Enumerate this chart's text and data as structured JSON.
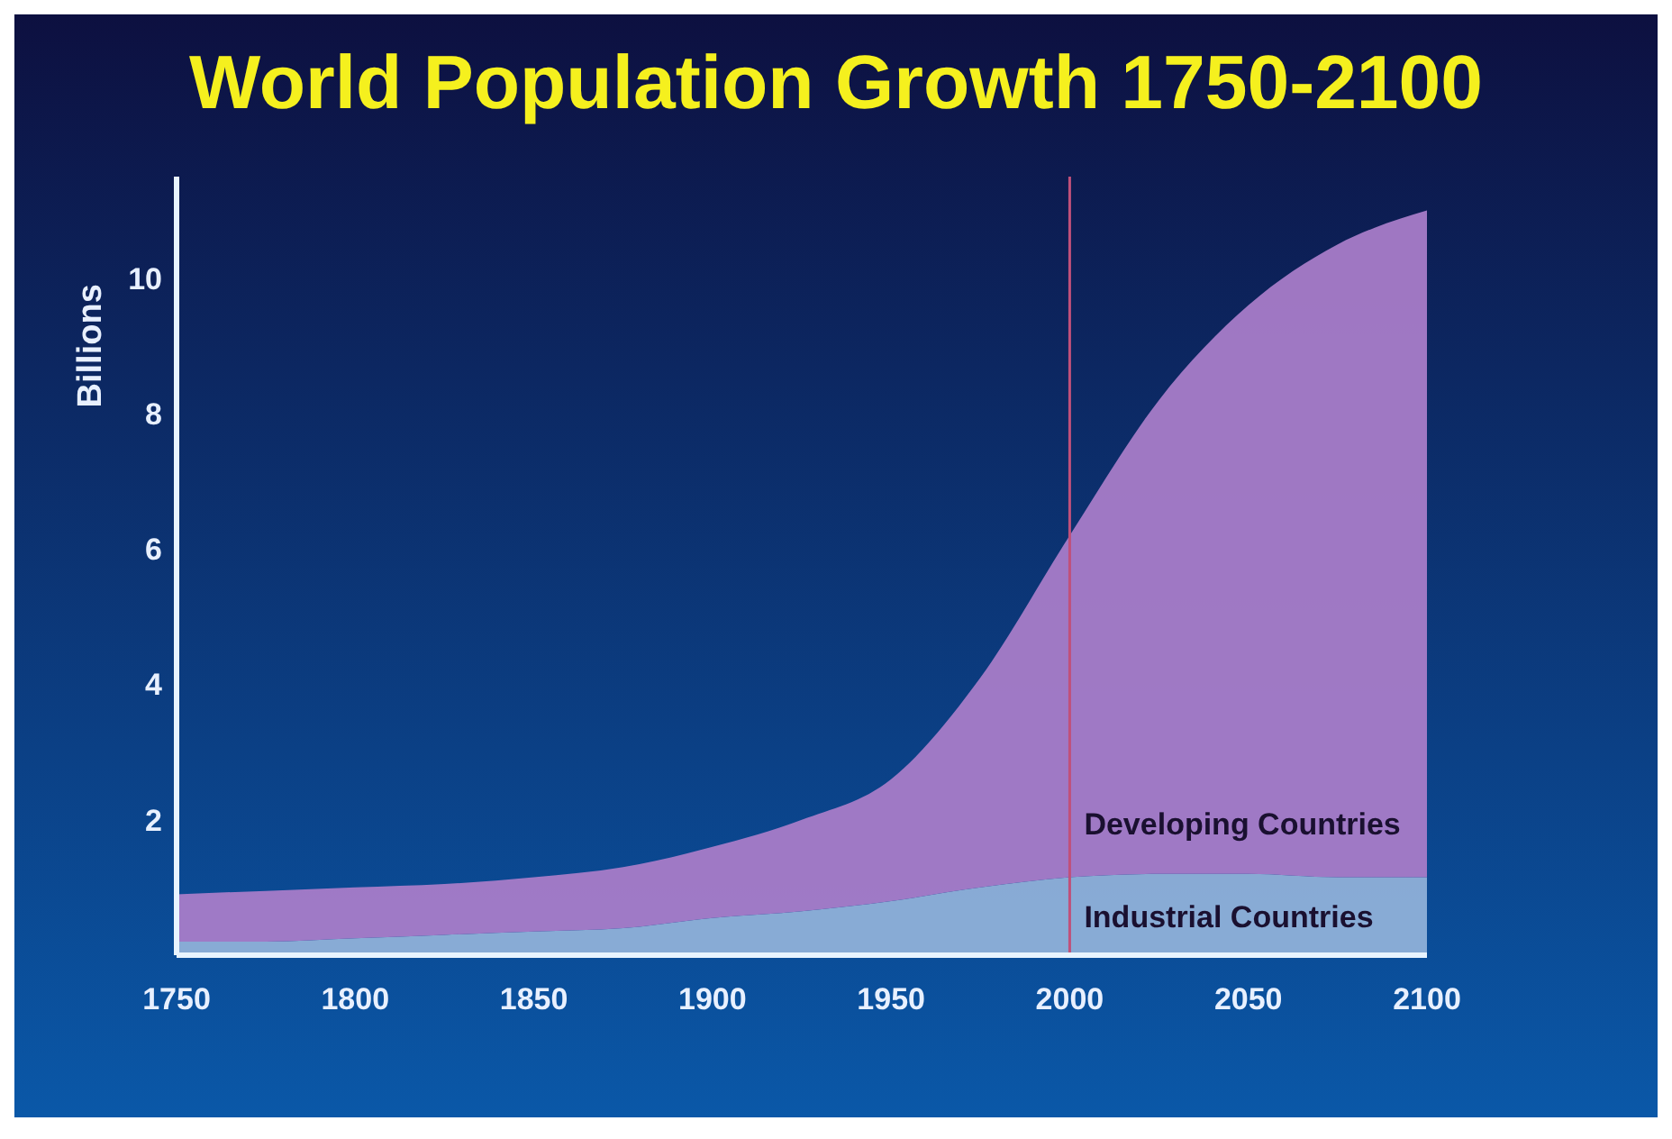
{
  "chart_data": {
    "type": "area",
    "title": "World Population Growth 1750-2100",
    "ylabel": "Billions",
    "stacked": true,
    "x": [
      1750,
      1775,
      1800,
      1825,
      1850,
      1875,
      1900,
      1925,
      1950,
      1975,
      2000,
      2025,
      2050,
      2075,
      2100
    ],
    "series": [
      {
        "name": "Industrial Countries",
        "color": "#8fb0d8",
        "values": [
          0.2,
          0.2,
          0.25,
          0.3,
          0.35,
          0.4,
          0.55,
          0.65,
          0.8,
          1.0,
          1.15,
          1.2,
          1.2,
          1.15,
          1.15
        ]
      },
      {
        "name": "Developing Countries",
        "color": "#a87cc8",
        "values": [
          0.7,
          0.75,
          0.75,
          0.75,
          0.8,
          0.9,
          1.05,
          1.35,
          1.8,
          3.1,
          5.05,
          7.0,
          8.4,
          9.35,
          9.85
        ]
      }
    ],
    "xlim": [
      1750,
      2100
    ],
    "xticks": [
      1750,
      1800,
      1850,
      1900,
      1950,
      2000,
      2050,
      2100
    ],
    "ylim": [
      0,
      11.5
    ],
    "yticks": [
      2,
      4,
      6,
      8,
      10
    ],
    "ref_lines": [
      {
        "axis": "x",
        "value": 2000,
        "color": "#c0507a"
      }
    ],
    "grid": false
  }
}
